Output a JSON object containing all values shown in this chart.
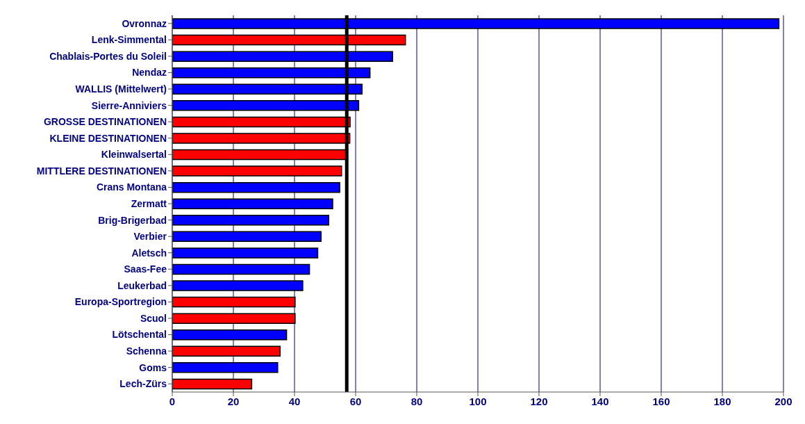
{
  "chart_data": {
    "type": "bar",
    "orientation": "horizontal",
    "categories": [
      "Ovronnaz",
      "Lenk-Simmental",
      "Chablais-Portes du Soleil",
      "Nendaz",
      "WALLIS (Mittelwert)",
      "Sierre-Anniviers",
      "GROSSE DESTINATIONEN",
      "KLEINE DESTINATIONEN",
      "Kleinwalsertal",
      "MITTLERE DESTINATIONEN",
      "Crans Montana",
      "Zermatt",
      "Brig-Brigerbad",
      "Verbier",
      "Aletsch",
      "Saas-Fee",
      "Leukerbad",
      "Europa-Sportregion",
      "Scuol",
      "Lötschental",
      "Schenna",
      "Goms",
      "Lech-Zürs"
    ],
    "values": [
      198.5,
      76.3,
      72.1,
      64.7,
      62.1,
      61.0,
      58.2,
      58.1,
      57.0,
      55.4,
      54.8,
      52.5,
      51.2,
      48.7,
      47.6,
      44.9,
      42.7,
      40.2,
      40.2,
      37.4,
      35.3,
      34.5,
      26.0
    ],
    "colors": [
      "#0000ff",
      "#ff0000",
      "#0000ff",
      "#0000ff",
      "#0000ff",
      "#0000ff",
      "#ff0000",
      "#ff0000",
      "#ff0000",
      "#ff0000",
      "#0000ff",
      "#0000ff",
      "#0000ff",
      "#0000ff",
      "#0000ff",
      "#0000ff",
      "#0000ff",
      "#ff0000",
      "#ff0000",
      "#0000ff",
      "#ff0000",
      "#0000ff",
      "#ff0000"
    ],
    "xlim": [
      0,
      200
    ],
    "xticks": [
      0,
      20,
      40,
      60,
      80,
      100,
      120,
      140,
      160,
      180,
      200
    ],
    "grid": "x",
    "ref_lines": [
      {
        "axis": "x",
        "value": 57.1,
        "color": "#000000"
      }
    ]
  }
}
